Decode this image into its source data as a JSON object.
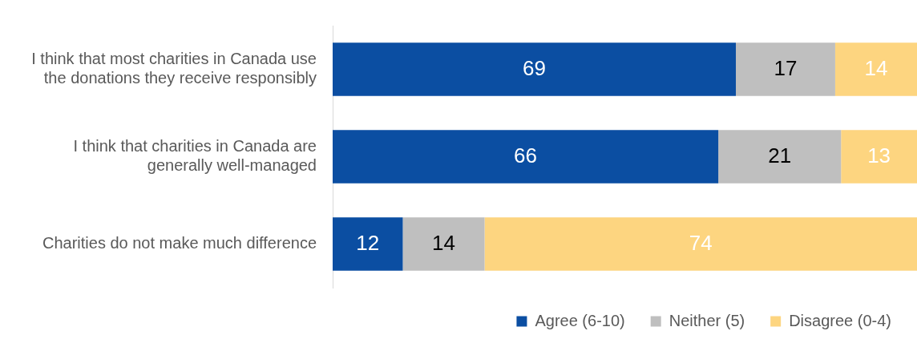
{
  "chart_data": {
    "type": "bar",
    "orientation": "horizontal",
    "stacked": true,
    "data_labels": true,
    "legend": "bottom right",
    "xlim": [
      0,
      100
    ],
    "categories": [
      "I think that most charities in Canada use the donations they receive responsibly",
      "I think that charities in Canada are generally well-managed",
      "Charities do not make much difference"
    ],
    "series": [
      {
        "name": "Agree (6-10)",
        "color": "#0b4ea2",
        "values": [
          69,
          66,
          12
        ]
      },
      {
        "name": "Neither (5)",
        "color": "#bfbfbf",
        "values": [
          17,
          21,
          14
        ]
      },
      {
        "name": "Disagree (0-4)",
        "color": "#fdd580",
        "values": [
          14,
          13,
          74
        ]
      }
    ]
  }
}
